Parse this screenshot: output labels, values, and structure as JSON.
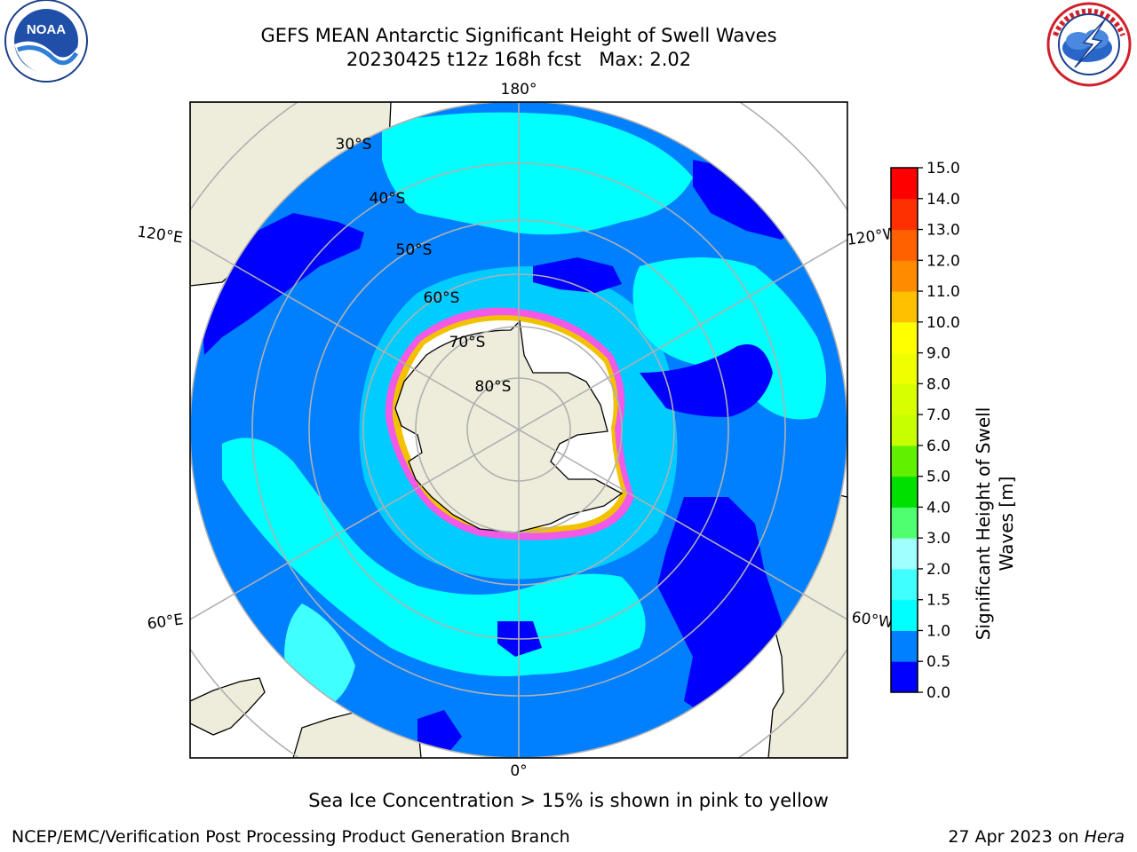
{
  "header": {
    "title_line_1": "GEFS MEAN Antarctic Significant Height of Swell Waves",
    "title_line_2": "20230425 t12z 168h fcst   Max: 2.02"
  },
  "logos": {
    "left": {
      "name": "noaa-logo",
      "text": "NOAA",
      "ring_text": "NATIONAL OCEANIC AND ATMOSPHERIC ADMINISTRATION · U.S. DEPARTMENT OF COMMERCE"
    },
    "right": {
      "name": "nws-logo",
      "ring_text": "NATIONAL WEATHER SERVICE"
    }
  },
  "map": {
    "projection": "south-polar-stereographic",
    "longitude_labels": {
      "top": "180°",
      "bottom": "0°",
      "upper_left": "120°E",
      "upper_right": "120°W",
      "lower_left": "60°E",
      "lower_right": "60°W"
    },
    "latitude_labels": [
      "30°S",
      "40°S",
      "50°S",
      "60°S",
      "70°S",
      "80°S"
    ],
    "colors": {
      "land": "#eeecdb",
      "coast": "#000000",
      "grid": "#b0b0b0",
      "ice_edge_inner": "#ffffff",
      "ice_edge_pink": "#f05ae6",
      "ice_edge_yellow": "#f2c200"
    }
  },
  "colorbar": {
    "label_line_1": "Significant Height of Swell",
    "label_line_2": "Waves [m]",
    "ticks": [
      "15.0",
      "14.0",
      "13.0",
      "12.0",
      "11.0",
      "10.0",
      "9.0",
      "8.0",
      "7.0",
      "6.0",
      "5.0",
      "4.0",
      "3.0",
      "2.0",
      "1.5",
      "1.0",
      "0.5",
      "0.0"
    ],
    "bins": [
      {
        "from": 0.0,
        "to": 0.5,
        "color": "#0000ff"
      },
      {
        "from": 0.5,
        "to": 1.0,
        "color": "#0080ff"
      },
      {
        "from": 1.0,
        "to": 1.5,
        "color": "#00ffff"
      },
      {
        "from": 1.5,
        "to": 2.0,
        "color": "#40ffff"
      },
      {
        "from": 2.0,
        "to": 3.0,
        "color": "#a0ffff"
      },
      {
        "from": 3.0,
        "to": 4.0,
        "color": "#50ff70"
      },
      {
        "from": 4.0,
        "to": 5.0,
        "color": "#00e000"
      },
      {
        "from": 5.0,
        "to": 6.0,
        "color": "#60f000"
      },
      {
        "from": 6.0,
        "to": 7.0,
        "color": "#c8ff00"
      },
      {
        "from": 7.0,
        "to": 8.0,
        "color": "#d8ff00"
      },
      {
        "from": 8.0,
        "to": 9.0,
        "color": "#f0ff00"
      },
      {
        "from": 9.0,
        "to": 10.0,
        "color": "#ffff00"
      },
      {
        "from": 10.0,
        "to": 11.0,
        "color": "#ffc000"
      },
      {
        "from": 11.0,
        "to": 12.0,
        "color": "#ff8c00"
      },
      {
        "from": 12.0,
        "to": 13.0,
        "color": "#ff6000"
      },
      {
        "from": 13.0,
        "to": 14.0,
        "color": "#ff3000"
      },
      {
        "from": 14.0,
        "to": 15.0,
        "color": "#ff0000"
      }
    ]
  },
  "footer": {
    "note": "Sea Ice Concentration > 15% is shown in pink to yellow",
    "credit_left": "NCEP/EMC/Verification Post Processing Product Generation Branch",
    "credit_right_date": "27 Apr 2023 on ",
    "credit_right_system": "Hera"
  }
}
